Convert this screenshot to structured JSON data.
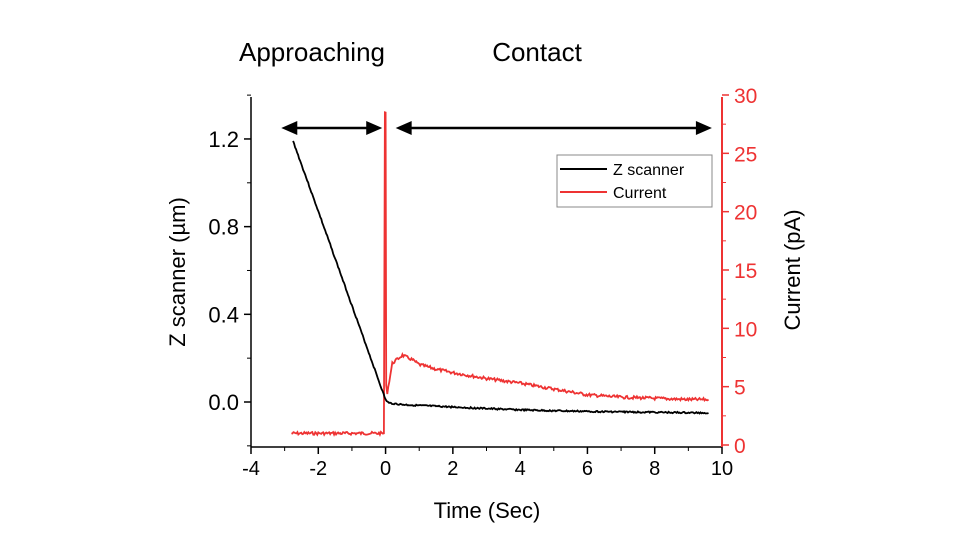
{
  "chart_data": {
    "type": "line",
    "annotations": [
      {
        "label": "Approaching",
        "arrow_from": -3.1,
        "arrow_to": -0.1,
        "arrow_y": 1.25
      },
      {
        "label": "Contact",
        "arrow_from": 0.3,
        "arrow_to": 9.7,
        "arrow_y": 1.25
      }
    ],
    "xlabel": "Time (Sec)",
    "ylabel_left": "Z scanner (µm)",
    "ylabel_right": "Current (pA)",
    "xlim": [
      -4,
      10
    ],
    "ylim_left": [
      -0.2,
      1.39
    ],
    "ylim_right": [
      0,
      30
    ],
    "xticks": [
      -4,
      -2,
      0,
      2,
      4,
      6,
      8,
      10
    ],
    "yticks_left": [
      "0.0",
      "0.4",
      "0.8",
      "1.2"
    ],
    "yticks_right": [
      0,
      5,
      10,
      15,
      20,
      25,
      30
    ],
    "legend_position": "top-right",
    "grid": false,
    "colors": {
      "z_scanner": "#000000",
      "current": "#ee3333",
      "right_axis": "#ee3333"
    },
    "series": [
      {
        "name": "Z scanner",
        "axis": "left",
        "x": [
          -2.75,
          -2,
          -1,
          0,
          0.1,
          0.5,
          1,
          2,
          3,
          4,
          5,
          6,
          7,
          8,
          9,
          9.6
        ],
        "y": [
          1.19,
          0.87,
          0.44,
          0.01,
          -0.005,
          -0.012,
          -0.016,
          -0.023,
          -0.03,
          -0.036,
          -0.04,
          -0.043,
          -0.045,
          -0.047,
          -0.049,
          -0.05
        ]
      },
      {
        "name": "Current",
        "axis": "right",
        "x": [
          -2.8,
          -2,
          -1,
          -0.05,
          -0.02,
          0.0,
          0.02,
          0.05,
          0.2,
          0.5,
          0.8,
          1,
          1.5,
          2,
          3,
          4,
          5,
          6,
          7,
          8,
          9,
          9.6
        ],
        "y": [
          1.0,
          1.0,
          1.0,
          1.0,
          28.5,
          28.5,
          5.0,
          4.5,
          7.0,
          7.7,
          7.3,
          6.9,
          6.5,
          6.2,
          5.7,
          5.3,
          4.8,
          4.3,
          4.1,
          4.0,
          3.9,
          3.9
        ]
      }
    ]
  }
}
